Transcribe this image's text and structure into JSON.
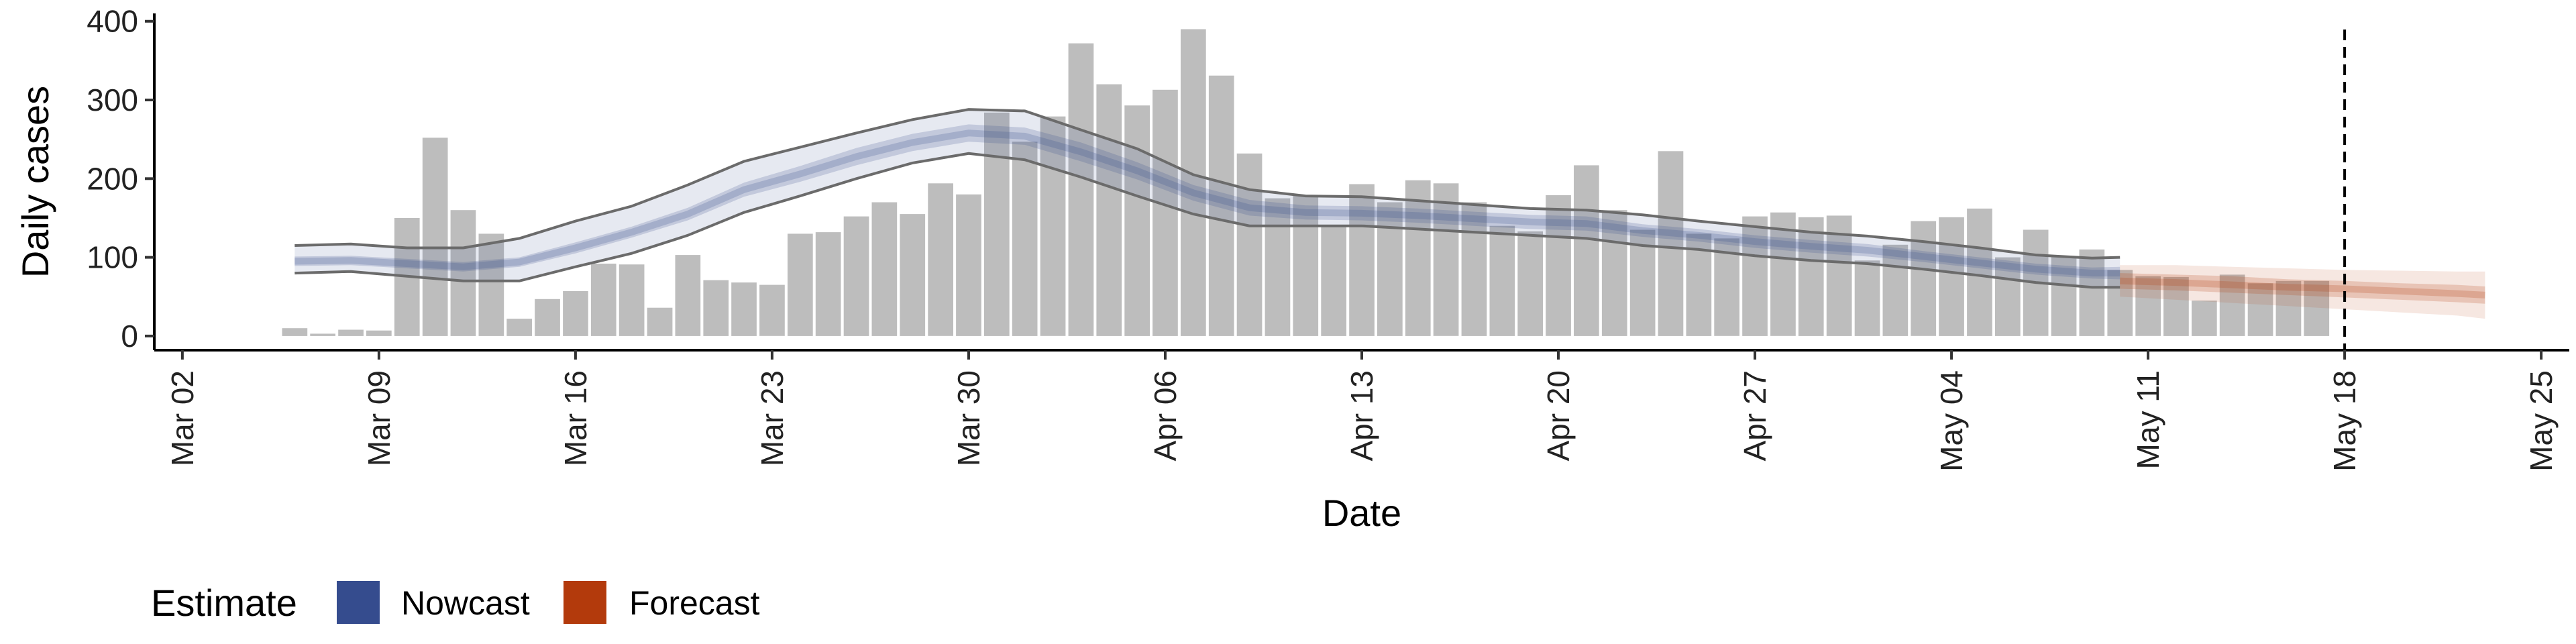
{
  "chart_data": {
    "type": "bar",
    "xlabel": "Date",
    "ylabel": "Daily cases",
    "ylim": [
      -18,
      410
    ],
    "yticks": [
      0,
      100,
      200,
      300,
      400
    ],
    "xlim": [
      "2020-03-01",
      "2020-05-26"
    ],
    "xticks": [
      {
        "date": "2020-03-02",
        "label": "Mar 02"
      },
      {
        "date": "2020-03-09",
        "label": "Mar 09"
      },
      {
        "date": "2020-03-16",
        "label": "Mar 16"
      },
      {
        "date": "2020-03-23",
        "label": "Mar 23"
      },
      {
        "date": "2020-03-30",
        "label": "Mar 30"
      },
      {
        "date": "2020-04-06",
        "label": "Apr 06"
      },
      {
        "date": "2020-04-13",
        "label": "Apr 13"
      },
      {
        "date": "2020-04-20",
        "label": "Apr 20"
      },
      {
        "date": "2020-04-27",
        "label": "Apr 27"
      },
      {
        "date": "2020-05-04",
        "label": "May 04"
      },
      {
        "date": "2020-05-11",
        "label": "May 11"
      },
      {
        "date": "2020-05-18",
        "label": "May 18"
      },
      {
        "date": "2020-05-25",
        "label": "May 25"
      }
    ],
    "bar_dates": [
      "2020-03-06",
      "2020-03-07",
      "2020-03-08",
      "2020-03-09",
      "2020-03-10",
      "2020-03-11",
      "2020-03-12",
      "2020-03-13",
      "2020-03-14",
      "2020-03-15",
      "2020-03-16",
      "2020-03-17",
      "2020-03-18",
      "2020-03-19",
      "2020-03-20",
      "2020-03-21",
      "2020-03-22",
      "2020-03-23",
      "2020-03-24",
      "2020-03-25",
      "2020-03-26",
      "2020-03-27",
      "2020-03-28",
      "2020-03-29",
      "2020-03-30",
      "2020-03-31",
      "2020-04-01",
      "2020-04-02",
      "2020-04-03",
      "2020-04-04",
      "2020-04-05",
      "2020-04-06",
      "2020-04-07",
      "2020-04-08",
      "2020-04-09",
      "2020-04-10",
      "2020-04-11",
      "2020-04-12",
      "2020-04-13",
      "2020-04-14",
      "2020-04-15",
      "2020-04-16",
      "2020-04-17",
      "2020-04-18",
      "2020-04-19",
      "2020-04-20",
      "2020-04-21",
      "2020-04-22",
      "2020-04-23",
      "2020-04-24",
      "2020-04-25",
      "2020-04-26",
      "2020-04-27",
      "2020-04-28",
      "2020-04-29",
      "2020-04-30",
      "2020-05-01",
      "2020-05-02",
      "2020-05-03",
      "2020-05-04",
      "2020-05-05",
      "2020-05-06",
      "2020-05-07",
      "2020-05-08",
      "2020-05-09",
      "2020-05-10",
      "2020-05-11",
      "2020-05-12",
      "2020-05-13",
      "2020-05-14",
      "2020-05-15",
      "2020-05-16",
      "2020-05-17"
    ],
    "bar_values": [
      10,
      3,
      8,
      7,
      150,
      252,
      160,
      130,
      22,
      47,
      57,
      92,
      91,
      36,
      103,
      71,
      68,
      65,
      130,
      132,
      152,
      170,
      155,
      194,
      180,
      284,
      247,
      279,
      372,
      320,
      293,
      313,
      390,
      331,
      232,
      175,
      178,
      141,
      193,
      170,
      198,
      194,
      170,
      140,
      133,
      179,
      217,
      160,
      135,
      235,
      130,
      124,
      152,
      157,
      151,
      153,
      96,
      116,
      146,
      151,
      162,
      100,
      135,
      101,
      110,
      84,
      76,
      75,
      45,
      78,
      67,
      70,
      70
    ],
    "series": [
      {
        "name": "Nowcast",
        "color": "#354C8E",
        "dates": [
          "2020-03-06",
          "2020-03-08",
          "2020-03-10",
          "2020-03-12",
          "2020-03-14",
          "2020-03-16",
          "2020-03-18",
          "2020-03-20",
          "2020-03-22",
          "2020-03-24",
          "2020-03-26",
          "2020-03-28",
          "2020-03-30",
          "2020-04-01",
          "2020-04-03",
          "2020-04-05",
          "2020-04-07",
          "2020-04-09",
          "2020-04-11",
          "2020-04-13",
          "2020-04-15",
          "2020-04-17",
          "2020-04-19",
          "2020-04-21",
          "2020-04-23",
          "2020-04-25",
          "2020-04-27",
          "2020-04-29",
          "2020-05-01",
          "2020-05-03",
          "2020-05-05",
          "2020-05-07",
          "2020-05-09",
          "2020-05-10"
        ],
        "median": [
          95,
          96,
          92,
          88,
          94,
          112,
          132,
          155,
          186,
          206,
          228,
          246,
          258,
          254,
          234,
          210,
          182,
          163,
          157,
          156,
          153,
          149,
          145,
          143,
          134,
          128,
          120,
          114,
          109,
          101,
          93,
          85,
          80,
          80
        ],
        "inner_lower": [
          89,
          90,
          86,
          82,
          88,
          105,
          125,
          147,
          177,
          196,
          217,
          235,
          247,
          243,
          222,
          199,
          172,
          153,
          148,
          147,
          144,
          140,
          136,
          134,
          126,
          120,
          112,
          106,
          101,
          94,
          86,
          78,
          73,
          72
        ],
        "inner_upper": [
          101,
          102,
          98,
          94,
          100,
          119,
          139,
          163,
          195,
          216,
          239,
          257,
          269,
          265,
          246,
          221,
          192,
          173,
          166,
          165,
          162,
          158,
          154,
          152,
          142,
          136,
          128,
          122,
          117,
          108,
          100,
          92,
          87,
          88
        ],
        "lower": [
          80,
          82,
          76,
          70,
          70,
          88,
          105,
          128,
          157,
          178,
          200,
          220,
          232,
          224,
          202,
          178,
          155,
          140,
          140,
          140,
          136,
          132,
          128,
          124,
          115,
          110,
          102,
          96,
          92,
          85,
          77,
          68,
          62,
          62
        ],
        "upper": [
          115,
          117,
          112,
          112,
          124,
          146,
          165,
          192,
          222,
          240,
          258,
          275,
          288,
          286,
          262,
          238,
          205,
          186,
          178,
          177,
          172,
          167,
          162,
          160,
          154,
          146,
          139,
          132,
          127,
          120,
          112,
          103,
          99,
          100
        ]
      },
      {
        "name": "Forecast",
        "color": "#B33A0C",
        "dates": [
          "2020-05-10",
          "2020-05-12",
          "2020-05-14",
          "2020-05-16",
          "2020-05-18",
          "2020-05-20",
          "2020-05-22",
          "2020-05-23"
        ],
        "median": [
          70,
          68,
          65,
          62,
          60,
          57,
          54,
          52
        ],
        "inner_lower": [
          60,
          58,
          55,
          52,
          49,
          46,
          43,
          41
        ],
        "inner_upper": [
          80,
          78,
          76,
          72,
          70,
          67,
          65,
          63
        ],
        "lower": [
          50,
          46,
          42,
          38,
          34,
          30,
          26,
          22
        ],
        "upper": [
          90,
          90,
          88,
          86,
          84,
          83,
          82,
          82
        ]
      }
    ],
    "vline_date": "2020-05-18",
    "legend": {
      "title": "Estimate",
      "position": "bottom-left",
      "items": [
        {
          "label": "Nowcast",
          "color": "#354C8E"
        },
        {
          "label": "Forecast",
          "color": "#B33A0C"
        }
      ]
    },
    "grid": false
  }
}
